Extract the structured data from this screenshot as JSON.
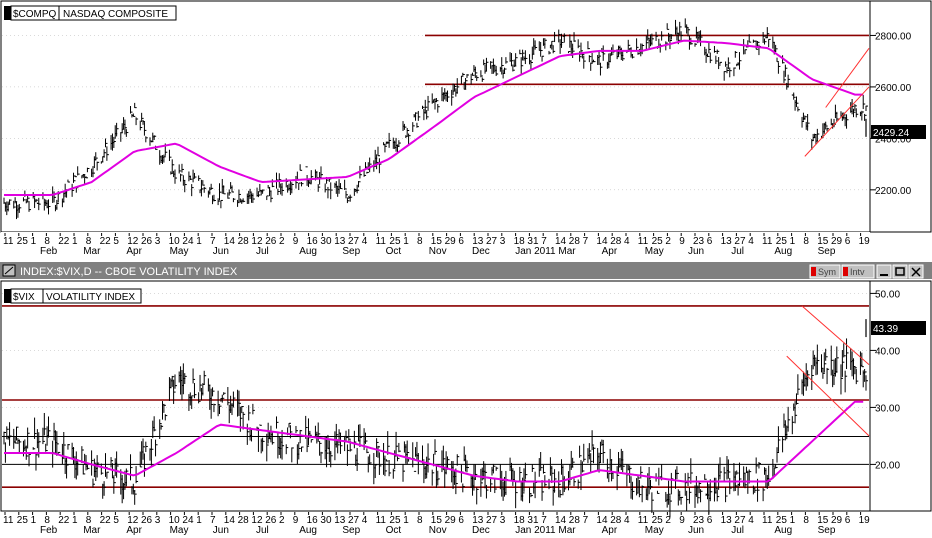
{
  "top_panel": {
    "symbol": "$COMPQ",
    "name": "NASDAQ COMPOSITE",
    "last_value": "2429.24"
  },
  "bottom_panel": {
    "title_bar": "INDEX:$VIX,D -- CBOE VOLATILITY INDEX",
    "buttons": [
      "Sym",
      "Intv"
    ],
    "symbol": "$VIX",
    "name": "VOLATILITY INDEX",
    "last_value": "43.39"
  },
  "x_axis": {
    "day_labels": [
      "11",
      "25",
      "1",
      "8",
      "22",
      "1",
      "8",
      "22",
      "5",
      "12",
      "26",
      "3",
      "10",
      "24",
      "1",
      "7",
      "14",
      "28",
      "12",
      "26",
      "2",
      "9",
      "16",
      "30",
      "13",
      "27",
      "4",
      "11",
      "25",
      "1",
      "8",
      "15",
      "29",
      "6",
      "13",
      "27",
      "3",
      "18",
      "31",
      "7",
      "14",
      "28",
      "7",
      "14",
      "28",
      "4",
      "11",
      "25",
      "2",
      "9",
      "23",
      "6",
      "13",
      "27",
      "4",
      "11",
      "25",
      "1",
      "8",
      "15",
      "29",
      "6",
      "19"
    ],
    "month_labels": [
      "Feb",
      "Mar",
      "Apr",
      "May",
      "Jun",
      "Jul",
      "Aug",
      "Sep",
      "Oct",
      "Nov",
      "Dec",
      "Jan 2011",
      "Mar",
      "Apr",
      "May",
      "Jun",
      "Jul",
      "Aug",
      "Sep"
    ]
  },
  "colors": {
    "background": "#ffffff",
    "price": "#000000",
    "moving_average": "#e100e1",
    "horizontal_line": "#8b0000",
    "trend_line": "#ff3030",
    "grid": "#b4b4b4",
    "title_bar": "#808080",
    "last_value_box": "#000000"
  },
  "chart_data": [
    {
      "type": "line",
      "title": "$COMPQ NASDAQ COMPOSITE",
      "style": "OHLC bars with moving average",
      "x": [
        "2010-02",
        "2010-03",
        "2010-04",
        "2010-05",
        "2010-06",
        "2010-07",
        "2010-08",
        "2010-09",
        "2010-10",
        "2010-11",
        "2010-12",
        "2011-01",
        "2011-02",
        "2011-03",
        "2011-04",
        "2011-05",
        "2011-06",
        "2011-07",
        "2011-08",
        "2011-09"
      ],
      "x_start": "2010-01-11",
      "x_end": "2011-09-23",
      "series": [
        {
          "name": "$COMPQ",
          "values": [
            2150,
            2290,
            2490,
            2260,
            2180,
            2180,
            2260,
            2180,
            2370,
            2530,
            2650,
            2700,
            2780,
            2700,
            2760,
            2820,
            2680,
            2800,
            2400,
            2520
          ]
        },
        {
          "name": "moving average",
          "values": [
            2180,
            2230,
            2350,
            2380,
            2290,
            2230,
            2240,
            2250,
            2320,
            2440,
            2560,
            2640,
            2720,
            2740,
            2740,
            2780,
            2770,
            2750,
            2630,
            2570
          ]
        }
      ],
      "last_value": 2429.24,
      "y_ticks": [
        2200,
        2400,
        2600,
        2800
      ],
      "ylim": [
        2040,
        2930
      ],
      "horizontal_lines": [
        2800,
        2610
      ],
      "grid": true
    },
    {
      "type": "line",
      "title": "$VIX VOLATILITY INDEX",
      "style": "OHLC bars with moving average",
      "x": [
        "2010-02",
        "2010-03",
        "2010-04",
        "2010-05",
        "2010-06",
        "2010-07",
        "2010-08",
        "2010-09",
        "2010-10",
        "2010-11",
        "2010-12",
        "2011-01",
        "2011-02",
        "2011-03",
        "2011-04",
        "2011-05",
        "2011-06",
        "2011-07",
        "2011-08",
        "2011-09"
      ],
      "x_start": "2010-01-11",
      "x_end": "2011-09-23",
      "series": [
        {
          "name": "$VIX",
          "values": [
            24,
            19,
            17,
            35,
            32,
            26,
            24,
            23,
            21,
            20,
            18,
            17,
            17,
            22,
            16,
            16,
            17,
            18,
            38,
            37
          ]
        },
        {
          "name": "moving average",
          "values": [
            22,
            20,
            18,
            22,
            27,
            26,
            25,
            24,
            22,
            20,
            18,
            17,
            17,
            19,
            18,
            17,
            17,
            17,
            24,
            31
          ]
        }
      ],
      "last_value": 43.39,
      "y_ticks": [
        20,
        30,
        40,
        50
      ],
      "ylim": [
        12,
        52
      ],
      "horizontal_lines": [
        47.8,
        31.3,
        24.9,
        20.0,
        16.0
      ],
      "grid": true
    }
  ]
}
